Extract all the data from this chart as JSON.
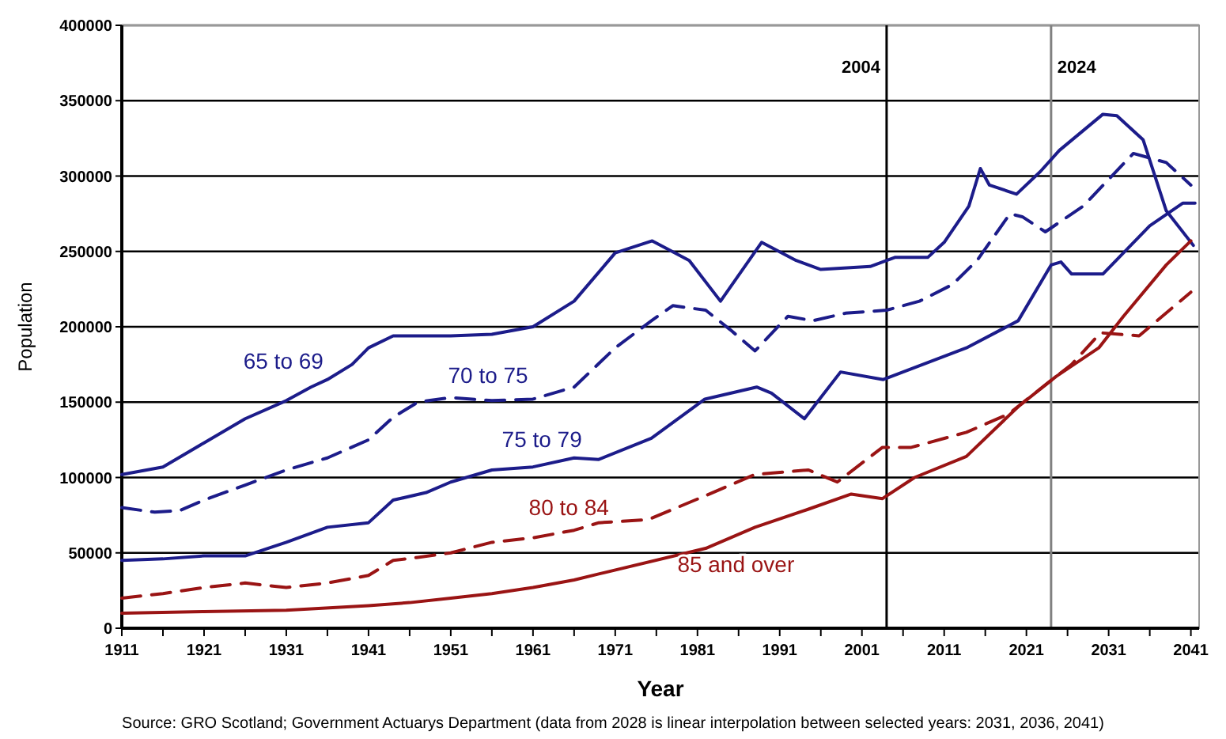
{
  "chart_data": {
    "type": "line",
    "xlabel": "Year",
    "ylabel": "Population",
    "xlim": [
      1911,
      2042
    ],
    "ylim": [
      0,
      400000
    ],
    "xticks": [
      1911,
      {
        "value": 1916,
        "label": null
      },
      1921,
      {
        "value": 1926,
        "label": null
      },
      1931,
      {
        "value": 1936,
        "label": null
      },
      1941,
      {
        "value": 1946,
        "label": null
      },
      1951,
      {
        "value": 1956,
        "label": null
      },
      1961,
      {
        "value": 1966,
        "label": null
      },
      1971,
      {
        "value": 1976,
        "label": null
      },
      1981,
      {
        "value": 1986,
        "label": null
      },
      1991,
      {
        "value": 1996,
        "label": null
      },
      2001,
      {
        "value": 2006,
        "label": null
      },
      2011,
      {
        "value": 2016,
        "label": null
      },
      2021,
      {
        "value": 2026,
        "label": null
      },
      2031,
      {
        "value": 2036,
        "label": null
      },
      2041
    ],
    "yticks": [
      0,
      50000,
      100000,
      150000,
      200000,
      250000,
      300000,
      350000,
      400000
    ],
    "grid": "y",
    "legend": false,
    "marker": "none",
    "series": [
      {
        "name": "65 to 69",
        "color": "#1c1c8a",
        "line_style": "solid",
        "x": [
          1911,
          1916,
          1921,
          1926,
          1931,
          1934,
          1936,
          1939,
          1941,
          1944,
          1951,
          1956,
          1961,
          1966,
          1971,
          1975.5,
          1980,
          1983.8,
          1988.8,
          1993,
          1996,
          2002,
          2005,
          2009,
          2011,
          2014,
          2015.4,
          2016.5,
          2019.8,
          2022.7,
          2025,
          2030.3,
          2032,
          2035.2,
          2038,
          2041.3
        ],
        "values": [
          102000,
          107000,
          123000,
          139000,
          151000,
          160000,
          165000,
          175000,
          186000,
          194000,
          194000,
          195000,
          200000,
          217000,
          249000,
          257000,
          244000,
          217000,
          256000,
          244000,
          238000,
          240000,
          246000,
          246000,
          256000,
          280000,
          305000,
          294000,
          288000,
          303000,
          317000,
          341000,
          340000,
          324000,
          277000,
          254000
        ]
      },
      {
        "name": "70 to 75",
        "color": "#1c1c8a",
        "line_style": "dashed",
        "x": [
          1911,
          1915,
          1918,
          1921,
          1926,
          1931,
          1936,
          1941,
          1944,
          1947,
          1951,
          1956,
          1961,
          1966,
          1971,
          1975.4,
          1978,
          1982,
          1985,
          1988,
          1992,
          1995,
          1999,
          2004,
          2008,
          2012,
          2015,
          2019,
          2020.5,
          2023.3,
          2027.9,
          2034,
          2038,
          2041
        ],
        "values": [
          80000,
          77000,
          78000,
          85000,
          95000,
          105000,
          113000,
          125000,
          140000,
          150000,
          153000,
          151000,
          152000,
          160000,
          186000,
          204000,
          214000,
          211000,
          198000,
          184000,
          207000,
          204000,
          209000,
          211000,
          217000,
          228000,
          244000,
          275000,
          273000,
          263000,
          280000,
          315000,
          309000,
          294000
        ]
      },
      {
        "name": "75 to 79",
        "color": "#1c1c8a",
        "line_style": "solid",
        "x": [
          1911,
          1916,
          1921,
          1926,
          1931,
          1936,
          1941,
          1944,
          1948,
          1951,
          1956,
          1961,
          1966,
          1969,
          1975.4,
          1981.9,
          1988.2,
          1990,
          1994,
          1998.4,
          2003.6,
          2013.7,
          2020,
          2024,
          2025.2,
          2026.5,
          2030.3,
          2032.8,
          2036,
          2040,
          2041.5
        ],
        "values": [
          45000,
          46000,
          48000,
          48000,
          57000,
          67000,
          70000,
          85000,
          90000,
          97000,
          105000,
          107000,
          113000,
          112000,
          126000,
          152000,
          160000,
          156000,
          139000,
          170000,
          165000,
          186000,
          204000,
          241000,
          243000,
          235000,
          235000,
          249000,
          267000,
          282000,
          282000
        ]
      },
      {
        "name": "80 to 84",
        "color": "#9a1414",
        "line_style": "dashed",
        "x": [
          1911,
          1916,
          1921,
          1926,
          1931,
          1936,
          1941,
          1944,
          1947,
          1951,
          1956,
          1961,
          1966,
          1969,
          1975,
          1982,
          1988,
          1994.5,
          1998,
          2003.5,
          2007,
          2013.7,
          2018.8,
          2024.6,
          2026.5,
          2030,
          2034.7,
          2041
        ],
        "values": [
          20000,
          23000,
          27000,
          30000,
          27000,
          30000,
          35000,
          45000,
          47000,
          50000,
          57000,
          60000,
          65000,
          70000,
          72000,
          88000,
          102000,
          105000,
          97000,
          120000,
          120000,
          130000,
          142000,
          167000,
          175000,
          196000,
          194000,
          223000
        ]
      },
      {
        "name": "85 and over",
        "color": "#9a1414",
        "line_style": "solid",
        "x": [
          1911,
          1921,
          1931,
          1941,
          1946,
          1951,
          1956,
          1961,
          1966,
          1969,
          1982,
          1988,
          1994.5,
          1999.7,
          2003.5,
          2007.4,
          2013.7,
          2020,
          2024.6,
          2029.8,
          2032.8,
          2038,
          2041
        ],
        "values": [
          10000,
          11000,
          12000,
          15000,
          17000,
          20000,
          23000,
          27000,
          32000,
          36000,
          53000,
          67000,
          79000,
          89000,
          86000,
          100000,
          114000,
          147000,
          167000,
          186000,
          207000,
          241000,
          257000
        ]
      }
    ],
    "ref_lines": [
      {
        "axis": "x",
        "value": 2004,
        "label": "2004",
        "color": "#000000"
      },
      {
        "axis": "x",
        "value": 2024,
        "label": "2024",
        "color": "#808080"
      }
    ],
    "annotations": [
      "Source: GRO Scotland; Government Actuarys Department (data from 2028 is linear interpolation between selected years: 2031, 2036, 2041)"
    ]
  }
}
